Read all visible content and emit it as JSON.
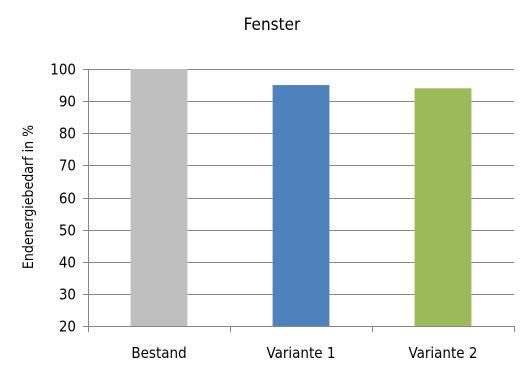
{
  "chart_data": {
    "type": "bar",
    "title": "Fenster",
    "xlabel": "",
    "ylabel": "Endenergiebedarf in %",
    "categories": [
      "Bestand",
      "Variante 1",
      "Variante 2"
    ],
    "values": [
      100,
      95,
      94
    ],
    "colors": [
      "#BFBFBF",
      "#4F81BD",
      "#9BBB59"
    ],
    "ylim": [
      20,
      100
    ],
    "yticks": [
      20,
      30,
      40,
      50,
      60,
      70,
      80,
      90,
      100
    ],
    "grid": true,
    "legend": "none"
  }
}
